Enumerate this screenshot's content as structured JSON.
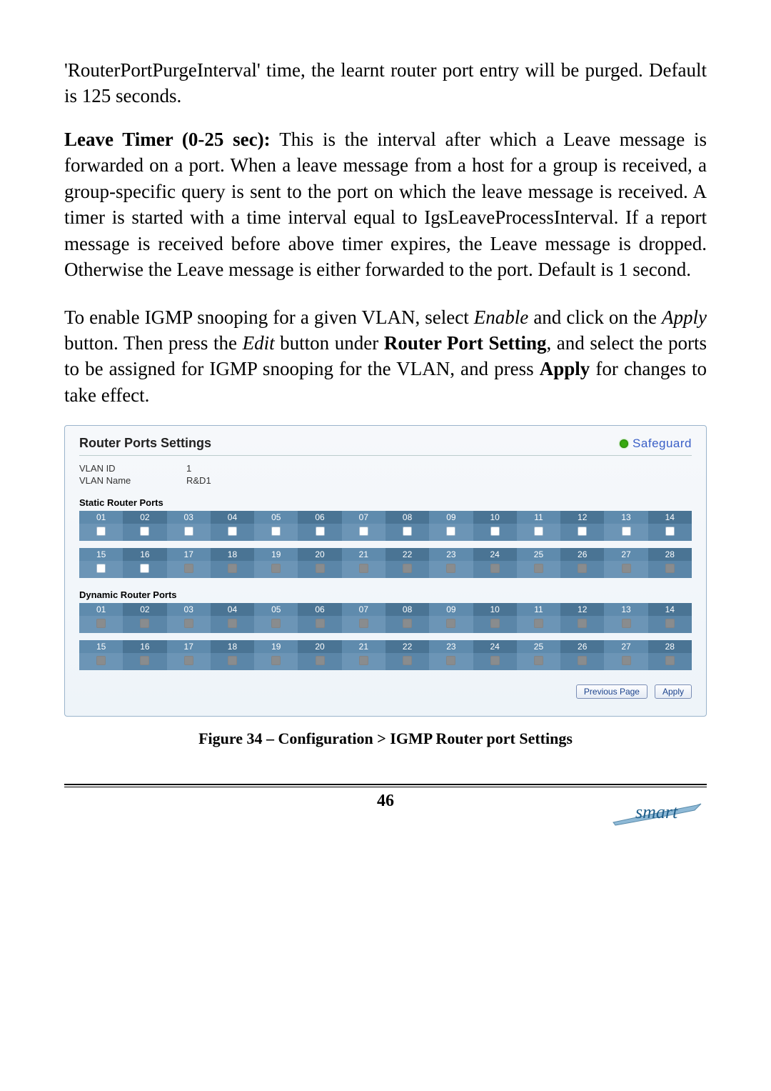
{
  "para1": "'RouterPortPurgeInterval' time, the learnt router port entry will be purged. Default is 125 seconds.",
  "para2_lead": "Leave Timer (0-25 sec): ",
  "para2_rest": "This is the interval after which a Leave message is forwarded on a port. When a leave message from a host for a group is received, a group-specific query is sent to the port on which the leave message is received. A timer is started with a time interval equal to IgsLeaveProcessInterval. If a report message is received before above timer expires, the Leave message is dropped. Otherwise the Leave message is either forwarded to the port. Default is 1 second.",
  "para3_a": "To enable IGMP snooping for a given VLAN, select ",
  "para3_b": "Enable",
  "para3_c": " and click on the ",
  "para3_d": "Apply",
  "para3_e": " button. Then press the ",
  "para3_f": "Edit",
  "para3_g": " button under ",
  "para3_h": "Router Port Setting",
  "para3_i": ", and select the ports to be assigned for IGMP snooping for the VLAN, and press ",
  "para3_j": "Apply",
  "para3_k": " for changes to take effect.",
  "screenshot": {
    "panel_title": "Router Ports Settings",
    "safeguard": "Safeguard",
    "vlan_id_label": "VLAN ID",
    "vlan_id_value": "1",
    "vlan_name_label": "VLAN Name",
    "vlan_name_value": "R&D1",
    "static_title": "Static Router Ports",
    "dynamic_title": "Dynamic Router Ports",
    "ports_row1": [
      "01",
      "02",
      "03",
      "04",
      "05",
      "06",
      "07",
      "08",
      "09",
      "10",
      "11",
      "12",
      "13",
      "14"
    ],
    "ports_row2": [
      "15",
      "16",
      "17",
      "18",
      "19",
      "20",
      "21",
      "22",
      "23",
      "24",
      "25",
      "26",
      "27",
      "28"
    ],
    "static_enabled_row1": [
      true,
      true,
      true,
      true,
      true,
      true,
      true,
      true,
      true,
      true,
      true,
      true,
      true,
      true
    ],
    "static_enabled_row2": [
      true,
      true,
      false,
      false,
      false,
      false,
      false,
      false,
      false,
      false,
      false,
      false,
      false,
      false
    ],
    "dynamic_enabled_row1": [
      false,
      false,
      false,
      false,
      false,
      false,
      false,
      false,
      false,
      false,
      false,
      false,
      false,
      false
    ],
    "dynamic_enabled_row2": [
      false,
      false,
      false,
      false,
      false,
      false,
      false,
      false,
      false,
      false,
      false,
      false,
      false,
      false
    ],
    "btn_prev": "Previous Page",
    "btn_apply": "Apply",
    "colors": {
      "header_dark": "#4a7494",
      "header_light": "#5f8bad",
      "cell_dark": "#5b86a8",
      "cell_light": "#6c95b6",
      "panel_border": "#9ab4cc",
      "safeguard_text": "#3a5fc7",
      "safeguard_dot": "#37a90f"
    }
  },
  "figure_caption": "Figure 34 – Configuration > IGMP Router port Settings",
  "page_number": "46",
  "logo_text": "smart"
}
